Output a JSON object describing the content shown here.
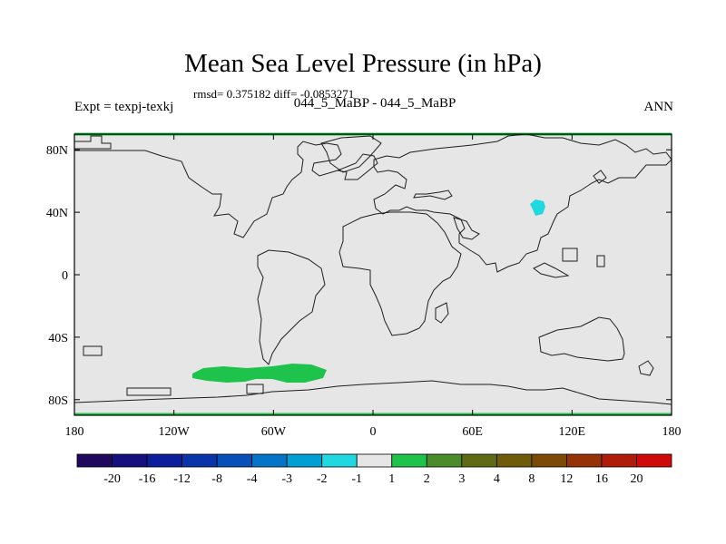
{
  "chart_data": {
    "type": "heatmap",
    "title": "Mean Sea Level Pressure (in hPa)",
    "stats": "rmsd= 0.375182 diff= -0.0853271",
    "left_label": "Expt = texpj-texkj",
    "center_label": "044_5_MaBP - 044_5_MaBP",
    "right_label": "ANN",
    "x_axis": {
      "range": [
        -180,
        180
      ],
      "ticks": [
        -180,
        -120,
        -60,
        0,
        60,
        120,
        180
      ],
      "tick_labels": [
        "180",
        "120W",
        "60W",
        "0",
        "60E",
        "120E",
        "180"
      ]
    },
    "y_axis": {
      "range": [
        -90,
        90
      ],
      "ticks": [
        80,
        40,
        0,
        -40,
        -80
      ],
      "tick_labels": [
        "80N",
        "40N",
        "0",
        "40S",
        "80S"
      ]
    },
    "background_value_range": [
      -1,
      1
    ],
    "anomalies": [
      {
        "name": "Southern Ocean positive anomaly",
        "value_class": "1 to 2",
        "color": "#1ec34b",
        "lon_range": [
          -110,
          -30
        ],
        "lat_range": [
          -73,
          -62
        ]
      },
      {
        "name": "Central Asia negative anomaly",
        "value_class": "-2 to -1",
        "color": "#20d8e0",
        "lon_range": [
          96,
          104
        ],
        "lat_range": [
          32,
          40
        ]
      },
      {
        "name": "North polar band",
        "value_class": "1 to 2",
        "color": "#1ec34b",
        "lon_range": [
          -180,
          180
        ],
        "lat_range": [
          89,
          90
        ]
      },
      {
        "name": "South polar band",
        "value_class": "1 to 2",
        "color": "#1ec34b",
        "lon_range": [
          -180,
          180
        ],
        "lat_range": [
          -90,
          -89
        ]
      }
    ],
    "colorbar": {
      "colors": [
        "#20085e",
        "#16107e",
        "#0c1e9c",
        "#0a34aa",
        "#0750b8",
        "#0474c8",
        "#00a0d4",
        "#20d8e0",
        "#e6e6e6",
        "#1ec34b",
        "#4a8c2a",
        "#5e6a14",
        "#6e5c0a",
        "#7a4a06",
        "#963208",
        "#b01c0a",
        "#d00a0a"
      ],
      "labels": [
        "-20",
        "-16",
        "-12",
        "-8",
        "-4",
        "-3",
        "-2",
        "-1",
        "1",
        "2",
        "3",
        "4",
        "8",
        "12",
        "16",
        "20"
      ]
    }
  }
}
